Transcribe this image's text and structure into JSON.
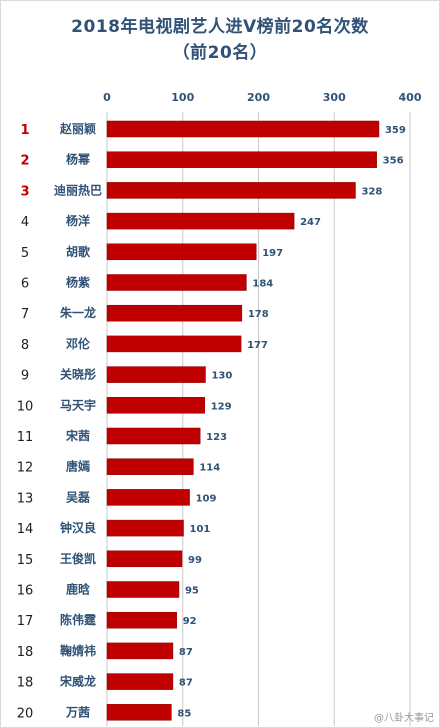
{
  "chart_data": {
    "type": "bar",
    "orientation": "horizontal",
    "title_line1": "2018年电视剧艺人进V榜前20名次数",
    "title_line2": "（前20名）",
    "xlim": [
      0,
      400
    ],
    "xticks": [
      0,
      100,
      200,
      300,
      400
    ],
    "grid": true,
    "bar_color": "#c00000",
    "ranks": [
      "1",
      "2",
      "3",
      "4",
      "5",
      "6",
      "7",
      "8",
      "9",
      "10",
      "11",
      "12",
      "13",
      "14",
      "15",
      "16",
      "17",
      "18",
      "18",
      "20"
    ],
    "categories": [
      "赵丽颖",
      "杨幂",
      "迪丽热巴",
      "杨洋",
      "胡歌",
      "杨紫",
      "朱一龙",
      "邓伦",
      "关晓彤",
      "马天宇",
      "宋茜",
      "唐嫣",
      "吴磊",
      "钟汉良",
      "王俊凯",
      "鹿晗",
      "陈伟霆",
      "鞠婧祎",
      "宋威龙",
      "万茜"
    ],
    "values": [
      359,
      356,
      328,
      247,
      197,
      184,
      178,
      177,
      130,
      129,
      123,
      114,
      109,
      101,
      99,
      95,
      92,
      87,
      87,
      85
    ]
  },
  "watermark": "@八卦大事记"
}
